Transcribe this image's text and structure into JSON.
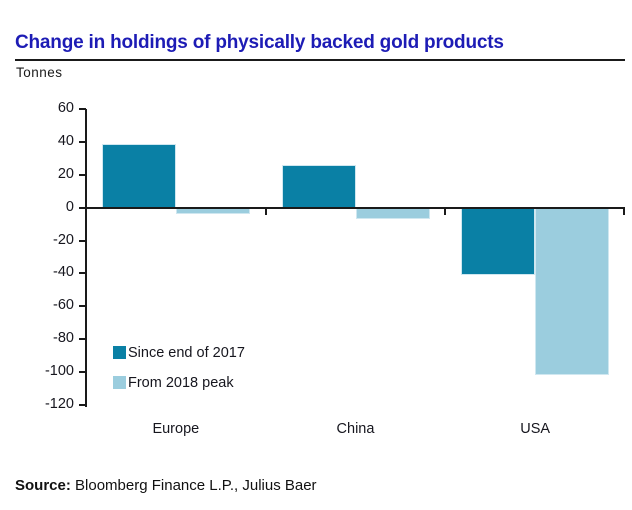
{
  "title": "Change in holdings of physically backed gold products",
  "unit_label": "Tonnes",
  "source": {
    "prefix": "Source:",
    "text": " Bloomberg Finance L.P., Julius Baer"
  },
  "colors": {
    "title_blue": "#1d1cb5",
    "series_dark_teal": "#0a80a5",
    "series_light_blue": "#9bcdde",
    "axis_black": "#1a1a1a"
  },
  "chart_data": {
    "type": "bar",
    "title": "Change in holdings of physically backed gold products",
    "ylabel": "Tonnes",
    "xlabel": "",
    "categories": [
      "Europe",
      "China",
      "USA"
    ],
    "series": [
      {
        "name": "Since end of 2017",
        "color": "#0a80a5",
        "values": [
          39,
          26,
          -41
        ]
      },
      {
        "name": "From 2018 peak",
        "color": "#9bcdde",
        "values": [
          -4,
          -7,
          -102
        ]
      }
    ],
    "ylim": [
      -120,
      60
    ],
    "ytick_step": 20,
    "yticks": [
      60,
      40,
      20,
      0,
      -20,
      -40,
      -60,
      -80,
      -100,
      -120
    ],
    "grid": false,
    "legend_position": "inside-bottom-left"
  },
  "legend": {
    "items": [
      {
        "label": "Since end of 2017"
      },
      {
        "label": "From 2018 peak"
      }
    ]
  }
}
